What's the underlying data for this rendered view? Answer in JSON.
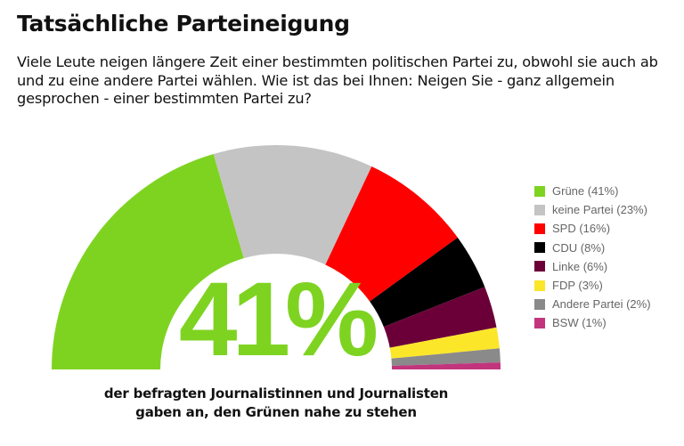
{
  "title": "Tatsächliche Parteineigung",
  "question": "Viele Leute neigen längere Zeit einer bestimmten politischen Partei zu, obwohl sie auch ab und zu eine andere Partei wählen. Wie ist das bei Ihnen: Neigen Sie - ganz allgemein gesprochen - einer bestimmten Partei zu?",
  "highlight_value": "41%",
  "caption_line1": "der befragten Journalistinnen und Journalisten",
  "caption_line2": "gaben an, den Grünen nahe zu stehen",
  "chart_data": {
    "type": "pie",
    "variant": "semicircle-donut",
    "legend_position": "right",
    "categories": [
      "Grüne",
      "keine Partei",
      "SPD",
      "CDU",
      "Linke",
      "FDP",
      "Andere Partei",
      "BSW"
    ],
    "values": [
      41,
      23,
      16,
      8,
      6,
      3,
      2,
      1
    ],
    "colors": [
      "#7ed321",
      "#c4c4c4",
      "#ff0000",
      "#000000",
      "#6b0038",
      "#fbe62a",
      "#8a8a8a",
      "#c2357d"
    ],
    "legend_labels": [
      "Grüne (41%)",
      "keine Partei (23%)",
      "SPD (16%)",
      "CDU (8%)",
      "Linke (6%)",
      "FDP (3%)",
      "Andere Partei (2%)",
      "BSW (1%)"
    ]
  }
}
